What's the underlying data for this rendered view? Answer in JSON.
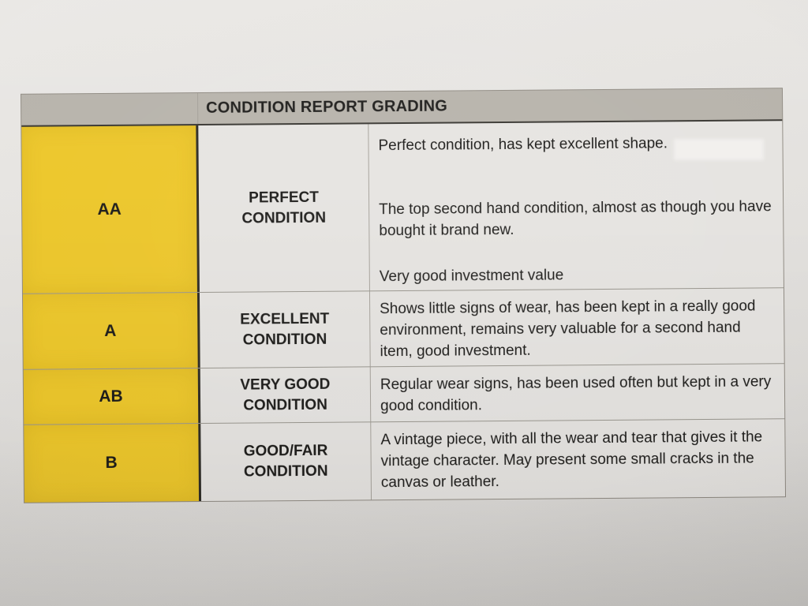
{
  "table": {
    "title": "CONDITION REPORT GRADING",
    "rows": [
      {
        "grade": "AA",
        "condition": "PERFECT CONDITION",
        "description_paragraphs": [
          "Perfect condition, has kept excellent shape.",
          "The top second hand condition, almost as though you have bought it brand new.",
          "Very good investment value"
        ]
      },
      {
        "grade": "A",
        "condition": "EXCELLENT CONDITION",
        "description_paragraphs": [
          "Shows little signs of wear, has been kept in a really good environment, remains very valuable for a second hand item, good investment."
        ]
      },
      {
        "grade": "AB",
        "condition": "VERY GOOD CONDITION",
        "description_paragraphs": [
          "Regular wear signs, has been used often but kept in a very good condition."
        ]
      },
      {
        "grade": "B",
        "condition": "GOOD/FAIR CONDITION",
        "description_paragraphs": [
          "A vintage piece, with all the wear and tear that gives it the vintage character. May present some small cracks in the canvas or leather."
        ]
      }
    ]
  },
  "colors": {
    "grade_column_bg": "#edc72b",
    "header_bg": "#b7b3ab",
    "cell_bg": "#e6e4e1",
    "paper_bg": "#e3e1de",
    "text": "#1d1c1a"
  }
}
